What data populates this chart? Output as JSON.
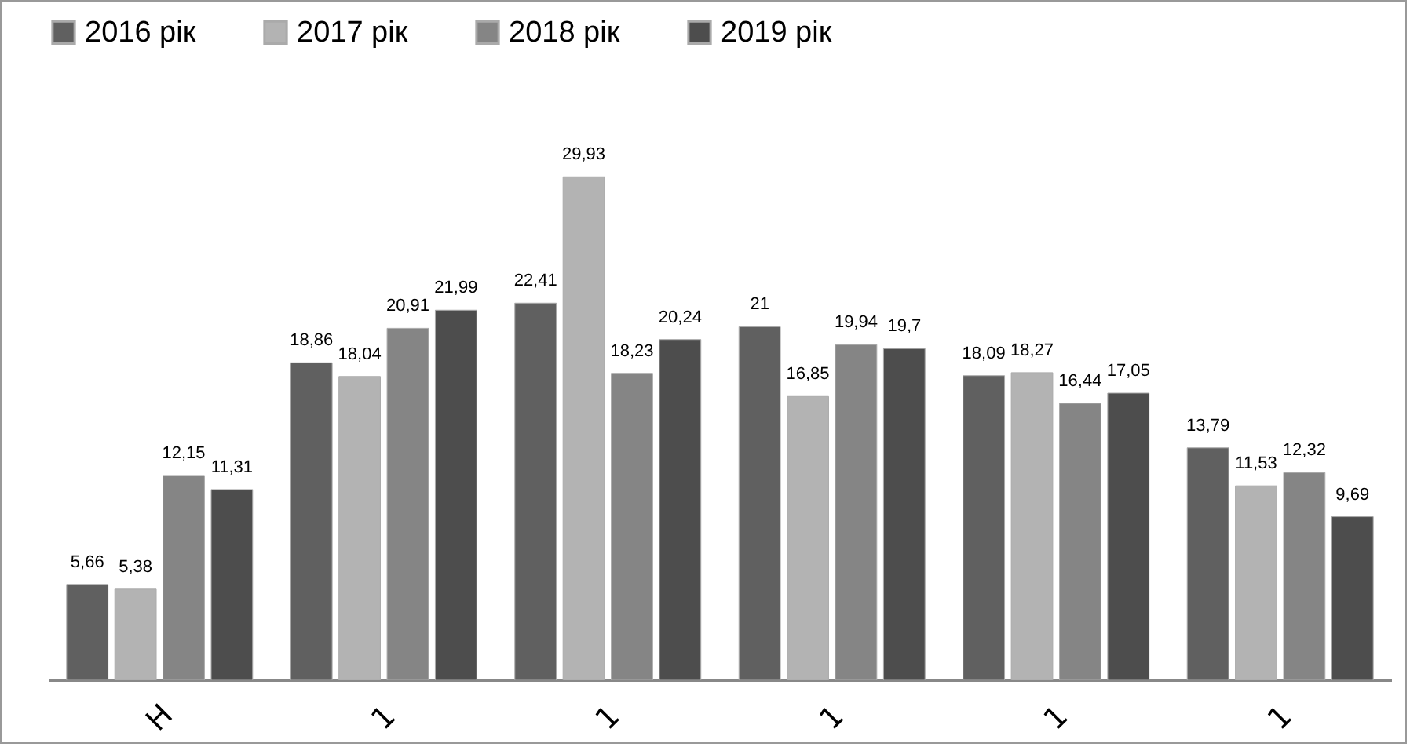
{
  "chart_data": {
    "type": "bar",
    "categories": [
      "Н",
      "1",
      "1",
      "1",
      "1",
      "1"
    ],
    "legend": "top",
    "series": [
      {
        "name": "2016 рік",
        "color": "#606060",
        "values": [
          5.66,
          18.86,
          22.41,
          21,
          18.09,
          13.79
        ],
        "value_labels": [
          "5,66",
          "18,86",
          "22,41",
          "21",
          "18,09",
          "13,79"
        ]
      },
      {
        "name": "2017 рік",
        "color": "#b3b3b3",
        "values": [
          5.38,
          18.04,
          29.93,
          16.85,
          18.27,
          11.53
        ],
        "value_labels": [
          "5,38",
          "18,04",
          "29,93",
          "16,85",
          "18,27",
          "11,53"
        ]
      },
      {
        "name": "2018 рік",
        "color": "#858585",
        "values": [
          12.15,
          20.91,
          18.23,
          19.94,
          16.44,
          12.32
        ],
        "value_labels": [
          "12,15",
          "20,91",
          "18,23",
          "19,94",
          "16,44",
          "12,32"
        ]
      },
      {
        "name": "2019 рік",
        "color": "#4d4d4d",
        "values": [
          11.31,
          21.99,
          20.24,
          19.7,
          17.05,
          9.69
        ],
        "value_labels": [
          "11,31",
          "21,99",
          "20,24",
          "19,7",
          "17,05",
          "9,69"
        ]
      }
    ]
  }
}
